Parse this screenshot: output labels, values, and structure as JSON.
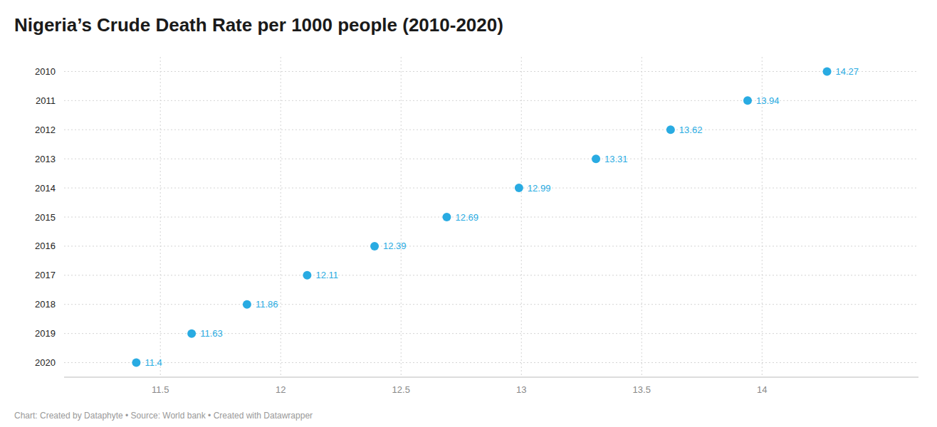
{
  "chart_data": {
    "type": "dot",
    "orientation": "horizontal",
    "title": "Nigeria’s Crude Death Rate per 1000 people (2010-2020)",
    "annotations": [
      "Chart: Created by Dataphyte • Source: World bank • Created with Datawrapper"
    ],
    "categories": [
      "2010",
      "2011",
      "2012",
      "2013",
      "2014",
      "2015",
      "2016",
      "2017",
      "2018",
      "2019",
      "2020"
    ],
    "values": [
      14.27,
      13.94,
      13.62,
      13.31,
      12.99,
      12.69,
      12.39,
      12.11,
      11.86,
      11.63,
      11.4
    ],
    "color": "#29ABE2",
    "xlim": [
      11.1,
      14.65
    ],
    "xticks": [
      11.5,
      12,
      12.5,
      13,
      13.5,
      14
    ],
    "grid": true,
    "data_labels": true
  }
}
